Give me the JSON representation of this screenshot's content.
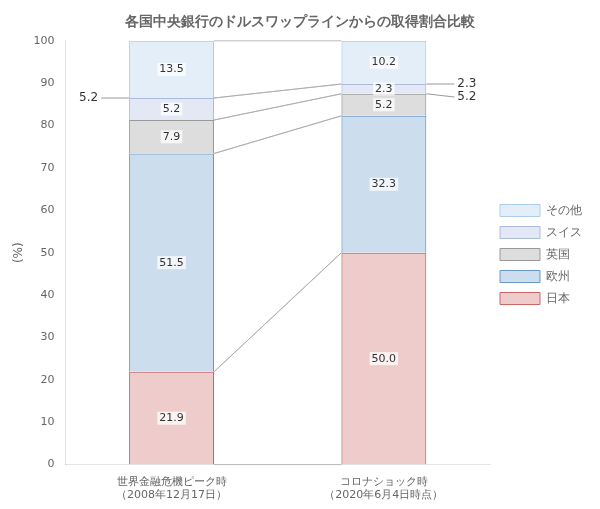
{
  "chart_data": {
    "type": "bar",
    "stacked": true,
    "title": "各国中央銀行のドルスワップラインからの取得割合比較",
    "y_label": "(%)",
    "categories": [
      "世界金融危機ピーク時\n（2008年12月17日）",
      "コロナショック時\n（2020年6月4日時点）"
    ],
    "series": [
      {
        "name": "日本",
        "color": "#cc6666",
        "values": [
          21.9,
          50.0
        ],
        "value_labels": [
          "21.9",
          "50.0"
        ]
      },
      {
        "name": "欧州",
        "color": "#6699cc",
        "values": [
          51.5,
          32.3
        ]
      },
      {
        "name": "英国",
        "color": "#999999",
        "values": [
          7.9,
          5.2
        ]
      },
      {
        "name": "スイス",
        "color": "#aabbdd",
        "values": [
          5.2,
          2.3
        ]
      },
      {
        "name": "その他",
        "color": "#aaccee",
        "values": [
          13.5,
          10.2
        ]
      }
    ],
    "ylim": [
      0,
      100
    ],
    "yticks": [
      0,
      10,
      20,
      30,
      40,
      50,
      60,
      70,
      80,
      90,
      100
    ],
    "grid": false,
    "legend": "right",
    "data_labels": true,
    "annotations": [
      {
        "text": "5.2",
        "x": "世界金融危機ピーク時\n（2008年12月17日）",
        "y": 86.5
      },
      {
        "text": "2.3",
        "x": "コロナショック時\n（2020年6月4日時点）",
        "y": 89.8
      },
      {
        "text": "5.2",
        "x": "コロナショック時\n（2020年6月4日時点）",
        "y": 87.5
      }
    ]
  }
}
